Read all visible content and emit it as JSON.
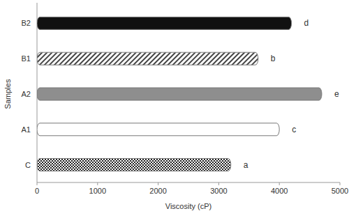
{
  "chart_data": {
    "type": "bar",
    "orientation": "horizontal",
    "x_label": "Viscosity (cP)",
    "y_label": "Samples",
    "categories": [
      "C",
      "A1",
      "A2",
      "B1",
      "B2"
    ],
    "values": [
      3200,
      4000,
      4700,
      3650,
      4200
    ],
    "annotations": [
      "a",
      "c",
      "e",
      "b",
      "d"
    ],
    "colors": [
      "#3a3a3a",
      "#ffffff",
      "#8e8e8e",
      "#5a5a5a",
      "#111111"
    ],
    "xlim": [
      0,
      5000
    ],
    "xticks": [
      0,
      1000,
      2000,
      3000,
      4000,
      5000
    ],
    "grid": false
  }
}
